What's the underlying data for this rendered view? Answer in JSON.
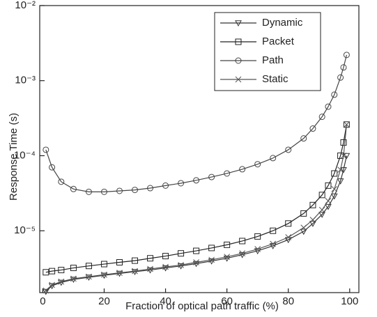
{
  "chart_data": {
    "type": "line",
    "log_y": true,
    "x_label": "Fraction of optical path traffic (%)",
    "y_label": "Response Time (s)",
    "x": [
      1,
      3,
      6,
      10,
      15,
      20,
      25,
      30,
      35,
      40,
      45,
      50,
      55,
      60,
      65,
      70,
      75,
      80,
      85,
      88,
      91,
      93,
      95,
      97,
      98,
      99
    ],
    "series": [
      {
        "name": "Dynamic",
        "color": "#333333",
        "marker": "triangle-down",
        "values": [
          1.55e-06,
          1.85e-06,
          2.05e-06,
          2.25e-06,
          2.4e-06,
          2.55e-06,
          2.7e-06,
          2.85e-06,
          3e-06,
          3.2e-06,
          3.4e-06,
          3.65e-06,
          3.95e-06,
          4.3e-06,
          4.8e-06,
          5.4e-06,
          6.3e-06,
          7.6e-06,
          9.8e-06,
          1.25e-05,
          1.65e-05,
          2.1e-05,
          2.9e-05,
          4.6e-05,
          6.5e-05,
          0.0001
        ]
      },
      {
        "name": "Packet",
        "color": "#222222",
        "marker": "square",
        "values": [
          2.8e-06,
          2.9e-06,
          3e-06,
          3.2e-06,
          3.4e-06,
          3.6e-06,
          3.8e-06,
          4e-06,
          4.3e-06,
          4.6e-06,
          5e-06,
          5.4e-06,
          5.9e-06,
          6.5e-06,
          7.3e-06,
          8.4e-06,
          1e-05,
          1.25e-05,
          1.7e-05,
          2.2e-05,
          3e-05,
          4e-05,
          5.8e-05,
          0.0001,
          0.00015,
          0.00026
        ]
      },
      {
        "name": "Path",
        "color": "#444444",
        "marker": "circle",
        "values": [
          0.00012,
          7e-05,
          4.5e-05,
          3.6e-05,
          3.3e-05,
          3.3e-05,
          3.4e-05,
          3.5e-05,
          3.7e-05,
          4e-05,
          4.3e-05,
          4.7e-05,
          5.2e-05,
          5.8e-05,
          6.6e-05,
          7.7e-05,
          9.3e-05,
          0.00012,
          0.00017,
          0.00023,
          0.00033,
          0.00045,
          0.00065,
          0.0011,
          0.0015,
          0.0022
        ]
      },
      {
        "name": "Static",
        "color": "#555555",
        "marker": "x",
        "values": [
          1.6e-06,
          1.9e-06,
          2.1e-06,
          2.3e-06,
          2.45e-06,
          2.6e-06,
          2.75e-06,
          2.9e-06,
          3.1e-06,
          3.3e-06,
          3.5e-06,
          3.8e-06,
          4.1e-06,
          4.5e-06,
          5e-06,
          5.7e-06,
          6.7e-06,
          8.2e-06,
          1.1e-05,
          1.4e-05,
          1.9e-05,
          2.5e-05,
          3.6e-05,
          6.5e-05,
          0.0001,
          0.00026
        ]
      }
    ],
    "xlim": [
      -1,
      103
    ],
    "xticks": [
      0,
      20,
      40,
      60,
      80,
      100
    ],
    "ylim": [
      1.5e-06,
      0.01
    ],
    "yticks": [
      {
        "value": 1e-05,
        "label": "10⁻⁵"
      },
      {
        "value": 0.0001,
        "label": "10⁻⁴"
      },
      {
        "value": 0.001,
        "label": "10⁻³"
      },
      {
        "value": 0.01,
        "label": "10⁻²"
      }
    ],
    "legend": "upper right",
    "grid": false
  }
}
